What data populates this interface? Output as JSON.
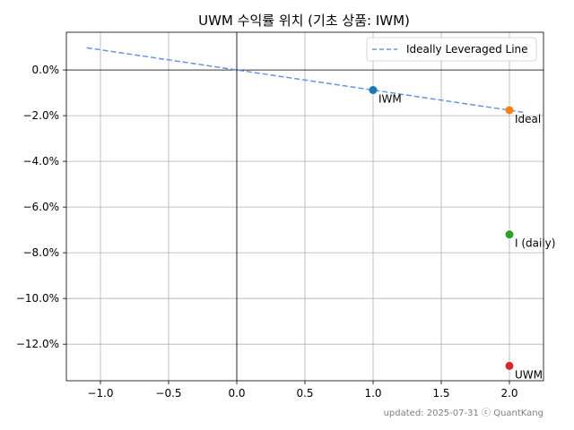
{
  "chart_data": {
    "type": "scatter",
    "title": "UWM 수익률 위치 (기초 상품: IWM)",
    "xlabel": "",
    "ylabel": "",
    "xlim": [
      -1.25,
      2.25
    ],
    "ylim": [
      -13.6,
      1.65
    ],
    "xticks": [
      -1.0,
      -0.5,
      0.0,
      0.5,
      1.0,
      1.5,
      2.0
    ],
    "xtick_labels": [
      "−1.0",
      "−0.5",
      "0.0",
      "0.5",
      "1.0",
      "1.5",
      "2.0"
    ],
    "yticks": [
      0,
      -2,
      -4,
      -6,
      -8,
      -10,
      -12
    ],
    "ytick_labels": [
      "0.0%",
      "−2.0%",
      "−4.0%",
      "−6.0%",
      "−8.0%",
      "−10.0%",
      "−12.0%"
    ],
    "grid": true,
    "legend_position": "top-right",
    "points": [
      {
        "label": "IWM",
        "x": 1.0,
        "y": -0.88,
        "color": "#1f77b4"
      },
      {
        "label": "Ideal",
        "x": 2.0,
        "y": -1.76,
        "color": "#ff7f0e"
      },
      {
        "label": "I (daily)",
        "x": 2.0,
        "y": -7.2,
        "color": "#2ca02c"
      },
      {
        "label": "UWM",
        "x": 2.0,
        "y": -12.95,
        "color": "#d62728"
      }
    ],
    "series": [
      {
        "name": "Ideally Leveraged Line",
        "style": "dashed",
        "color": "#6495ed",
        "x": [
          -1.1,
          2.1
        ],
        "y": [
          0.97,
          -1.85
        ]
      }
    ]
  },
  "footer": {
    "text": "updated: 2025-07-31 ⓒ QuantKang"
  }
}
